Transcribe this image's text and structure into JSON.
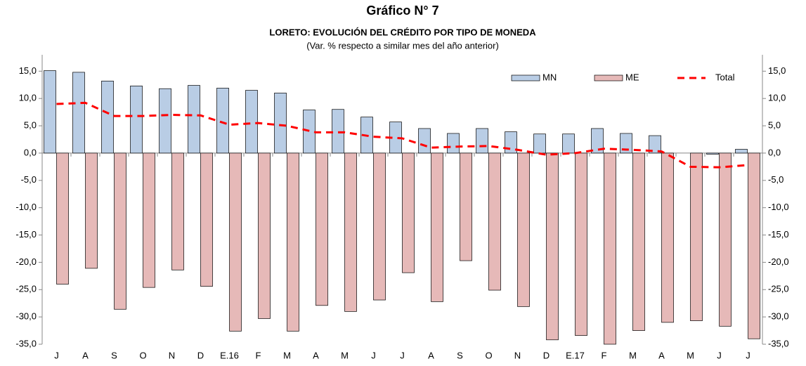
{
  "chart_data": {
    "type": "bar-line",
    "title": "Gráfico N° 7",
    "subtitle": "LORETO: EVOLUCIÓN DEL CRÉDITO POR TIPO DE MONEDA",
    "note": "(Var. % respecto a similar mes del año anterior)",
    "categories": [
      "J",
      "A",
      "S",
      "O",
      "N",
      "D",
      "E.16",
      "F",
      "M",
      "A",
      "M",
      "J",
      "J",
      "A",
      "S",
      "O",
      "N",
      "D",
      "E.17",
      "F",
      "M",
      "A",
      "M",
      "J",
      "J"
    ],
    "series": [
      {
        "name": "MN",
        "type": "bar",
        "color": "#b9cde5",
        "values": [
          15.1,
          14.8,
          13.2,
          12.3,
          11.8,
          12.4,
          11.9,
          11.5,
          11.0,
          7.9,
          8.0,
          6.6,
          5.7,
          4.5,
          3.6,
          4.5,
          3.9,
          3.5,
          3.5,
          4.5,
          3.6,
          3.2,
          0.0,
          -0.2,
          0.7
        ]
      },
      {
        "name": "ME",
        "type": "bar",
        "color": "#e6b9b8",
        "values": [
          -24.0,
          -21.1,
          -28.6,
          -24.6,
          -21.4,
          -24.4,
          -32.6,
          -30.3,
          -32.6,
          -27.9,
          -29.0,
          -26.9,
          -21.9,
          -27.2,
          -19.7,
          -25.1,
          -28.1,
          -34.2,
          -33.4,
          -35.0,
          -32.5,
          -31.0,
          -30.7,
          -31.7,
          -34.0
        ]
      },
      {
        "name": "Total",
        "type": "line",
        "color": "#ff0000",
        "values": [
          9.0,
          9.2,
          6.8,
          6.8,
          7.0,
          6.9,
          5.2,
          5.5,
          5.0,
          3.8,
          3.8,
          3.0,
          2.7,
          1.0,
          1.2,
          1.3,
          0.6,
          -0.3,
          0.0,
          0.8,
          0.6,
          0.3,
          -2.5,
          -2.6,
          -2.2
        ]
      }
    ],
    "ylim": [
      -35,
      18
    ],
    "yticks": [
      {
        "value": 15,
        "label": "15,0"
      },
      {
        "value": 10,
        "label": "10,0"
      },
      {
        "value": 5,
        "label": "5,0"
      },
      {
        "value": 0,
        "label": "0,0"
      },
      {
        "value": -5,
        "label": "-5,0"
      },
      {
        "value": -10,
        "label": "-10,0"
      },
      {
        "value": -15,
        "label": "-15,0"
      },
      {
        "value": -20,
        "label": "-20,0"
      },
      {
        "value": -25,
        "label": "-25,0"
      },
      {
        "value": -30,
        "label": "-30,0"
      },
      {
        "value": -35,
        "label": "-35,0"
      }
    ],
    "y2lim": [
      -35,
      18
    ],
    "y2ticks": [
      {
        "value": 15,
        "label": "15,0"
      },
      {
        "value": 10,
        "label": "10,0"
      },
      {
        "value": 5,
        "label": "5,0"
      },
      {
        "value": 0,
        "label": "0,0"
      },
      {
        "value": -5,
        "label": "-5,0"
      },
      {
        "value": -10,
        "label": "-10,0"
      },
      {
        "value": -15,
        "label": "-15,0"
      },
      {
        "value": -20,
        "label": "-20,0"
      },
      {
        "value": -25,
        "label": "-25,0"
      },
      {
        "value": -30,
        "label": "-30,0"
      },
      {
        "value": -35,
        "label": "-35,0"
      }
    ],
    "grid": false,
    "legend": "top-right"
  }
}
